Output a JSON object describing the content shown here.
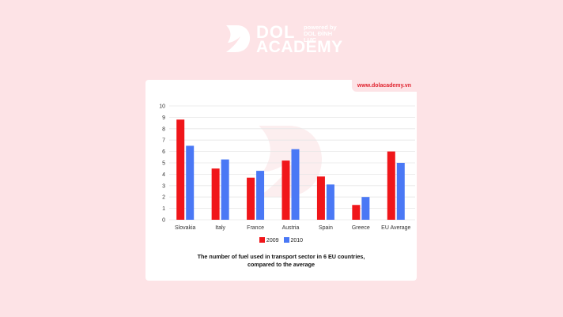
{
  "brand": {
    "name_line1": "DOL",
    "name_line2": "ACADEMY",
    "powered_by": "powered by",
    "powered_by_org": "DOL ĐÌNH LỰC",
    "site_url": "www.dolacademy.vn",
    "background_color": "#fde3e6",
    "accent_color": "#e0242f"
  },
  "chart_data": {
    "type": "bar",
    "title": "The number of fuel used in transport sector in 6 EU countries, compared to the average",
    "title_line1": "The number of fuel used in transport sector in 6 EU countries,",
    "title_line2": "compared to the average",
    "xlabel": "",
    "ylabel": "",
    "ylim": [
      0,
      10
    ],
    "yticks": [
      "0",
      "1",
      "2",
      "3",
      "4",
      "5",
      "6",
      "7",
      "8",
      "9",
      "10"
    ],
    "grid": true,
    "legend_position": "bottom",
    "categories": [
      "Slovakia",
      "Italy",
      "France",
      "Austria",
      "Spain",
      "Greece",
      "EU Average"
    ],
    "series": [
      {
        "name": "2009",
        "color": "#f0161a",
        "values": [
          8.8,
          4.5,
          3.7,
          5.2,
          3.8,
          1.3,
          6.0
        ]
      },
      {
        "name": "2010",
        "color": "#4a78f5",
        "values": [
          6.5,
          5.3,
          4.3,
          6.2,
          3.1,
          2.0,
          5.0
        ]
      }
    ]
  }
}
